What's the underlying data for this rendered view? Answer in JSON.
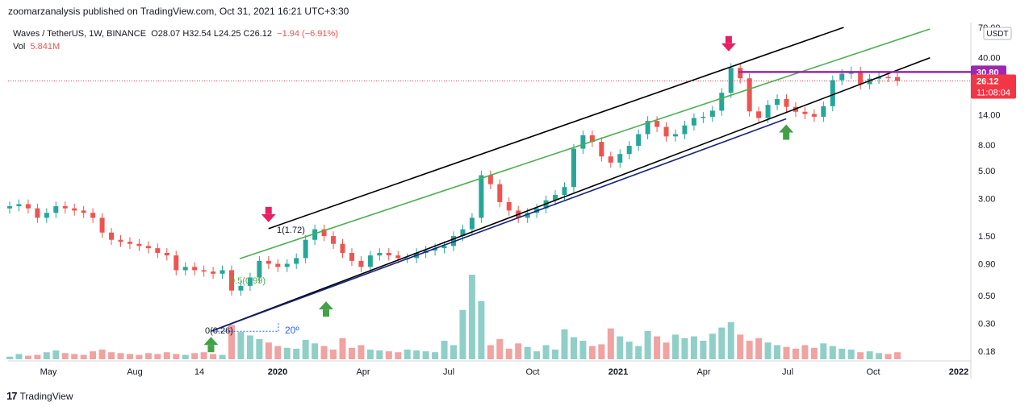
{
  "header": {
    "published": "zoomarzanalysis published on TradingView.com, Oct 31, 2021 16:21 UTC+3:30"
  },
  "legend": {
    "symbol": "Waves / TetherUS, 1W, BINANCE",
    "ohlc": "O28.07  H32.54  L24.25  C26.12",
    "change": "−1.94 (−6.91%)",
    "vol_label": "Vol",
    "vol_value": "5.841M"
  },
  "footer": {
    "brand": "TradingView",
    "logo": "17"
  },
  "price_axis": {
    "currency_badge": "USDT",
    "ticks": [
      "70.00",
      "40.00",
      "14.00",
      "8.00",
      "5.00",
      "3.00",
      "1.50",
      "0.90",
      "0.50",
      "0.30",
      "0.18"
    ],
    "tick_values": [
      70,
      40,
      14,
      8,
      5,
      3,
      1.5,
      0.9,
      0.5,
      0.3,
      0.18
    ],
    "level_label": "30.80",
    "level_value": 30.8,
    "last_price_label": "26.12",
    "last_price_value": 26.12,
    "countdown": "11:08:04"
  },
  "time_axis": {
    "labels": [
      "May",
      "Aug",
      "14",
      "2020",
      "Apr",
      "Jul",
      "Oct",
      "2021",
      "Apr",
      "Jul",
      "Oct",
      "2022"
    ],
    "bold": [
      false,
      false,
      false,
      true,
      false,
      false,
      false,
      true,
      false,
      false,
      false,
      true
    ]
  },
  "annotations": {
    "fib_1": "1(1.72)",
    "fib_05": "0.5(0.99)",
    "fib_0": "0(0.26)",
    "angle": "20º"
  },
  "colors": {
    "up": "#26a69a",
    "down": "#ef5350",
    "vol_up": "#8fcfc8",
    "vol_down": "#f0a3a1",
    "channel": "#000000",
    "midline": "#4caf50",
    "baseline": "#1a237e",
    "level": "#9c27b0",
    "arrow_down": "#e91e63",
    "arrow_up": "#43a047",
    "last_price": "#f23645"
  },
  "chart_data": {
    "type": "candlestick",
    "scale": "log",
    "interval": "1W",
    "ylim": [
      0.15,
      75
    ],
    "x_range": [
      "2019-04",
      "2022-01"
    ],
    "ohlc_close_path": [
      2.6,
      2.7,
      2.5,
      2.1,
      2.3,
      2.6,
      2.5,
      2.4,
      2.3,
      2.1,
      1.6,
      1.4,
      1.35,
      1.3,
      1.25,
      1.2,
      1.1,
      1.05,
      0.8,
      0.85,
      0.8,
      0.78,
      0.75,
      0.8,
      0.55,
      0.6,
      0.7,
      0.95,
      0.9,
      0.85,
      0.9,
      1.0,
      1.4,
      1.7,
      1.5,
      1.3,
      1.1,
      0.95,
      0.85,
      1.05,
      1.1,
      1.05,
      1.0,
      1.0,
      1.1,
      1.15,
      1.2,
      1.25,
      1.5,
      1.7,
      2.1,
      4.6,
      3.9,
      2.8,
      2.4,
      2.1,
      2.3,
      2.5,
      2.9,
      3.2,
      3.7,
      7.5,
      9.6,
      8.5,
      6.5,
      5.8,
      6.8,
      7.9,
      9.8,
      12.5,
      11.2,
      9.4,
      9.8,
      11.5,
      13.2,
      13.5,
      15.1,
      21.0,
      33.2,
      27.4,
      14.9,
      13.2,
      16.8,
      18.7,
      16.2,
      14.8,
      14.2,
      13.5,
      16.4,
      26.5,
      29.8,
      31.2,
      24.6,
      27.2,
      28.1,
      28.07,
      26.12
    ],
    "volume_path": [
      0.6,
      1.2,
      0.8,
      1.0,
      1.6,
      2.0,
      1.4,
      1.2,
      1.0,
      1.8,
      2.2,
      1.6,
      1.4,
      1.2,
      1.0,
      1.4,
      1.2,
      1.6,
      1.2,
      1.0,
      1.4,
      1.6,
      1.2,
      1.0,
      7.8,
      6.2,
      5.4,
      4.6,
      3.8,
      3.0,
      2.6,
      2.4,
      4.4,
      3.6,
      3.0,
      2.2,
      4.8,
      2.6,
      3.2,
      2.2,
      2.0,
      1.8,
      1.6,
      2.2,
      2.0,
      1.8,
      1.6,
      4.2,
      3.2,
      11.2,
      19.2,
      13.2,
      3.2,
      4.6,
      2.4,
      3.6,
      2.8,
      1.8,
      3.2,
      2.2,
      6.8,
      5.0,
      4.2,
      3.0,
      3.4,
      7.0,
      5.2,
      4.0,
      3.0,
      6.4,
      5.2,
      3.8,
      5.6,
      4.8,
      5.2,
      4.2,
      5.8,
      7.2,
      8.4,
      5.6,
      4.2,
      4.8,
      3.8,
      3.2,
      2.8,
      2.4,
      3.2,
      2.6,
      3.6,
      3.0,
      2.4,
      2.2,
      1.6,
      1.8,
      1.4,
      1.2,
      1.6
    ],
    "channel_lines": [
      {
        "role": "upper channel",
        "from": {
          "date": "2020-01",
          "price": 1.72
        },
        "to": {
          "date": "2021-09",
          "price": 70
        }
      },
      {
        "role": "midline",
        "from": {
          "date": "2019-12",
          "price": 0.99
        },
        "to": {
          "date": "2021-12",
          "price": 68
        }
      },
      {
        "role": "lower channel",
        "from": {
          "date": "2019-11",
          "price": 0.26
        },
        "to": {
          "date": "2021-12",
          "price": 40
        }
      }
    ],
    "horizontal_level": {
      "price": 30.8,
      "label": "30.80"
    },
    "arrows": [
      {
        "dir": "down",
        "date": "2020-01",
        "price": 1.72
      },
      {
        "dir": "down",
        "date": "2021-05",
        "price": 40
      },
      {
        "dir": "up",
        "date": "2019-11",
        "price": 0.26
      },
      {
        "dir": "up",
        "date": "2020-03",
        "price": 0.5
      },
      {
        "dir": "up",
        "date": "2021-07",
        "price": 13
      }
    ]
  }
}
